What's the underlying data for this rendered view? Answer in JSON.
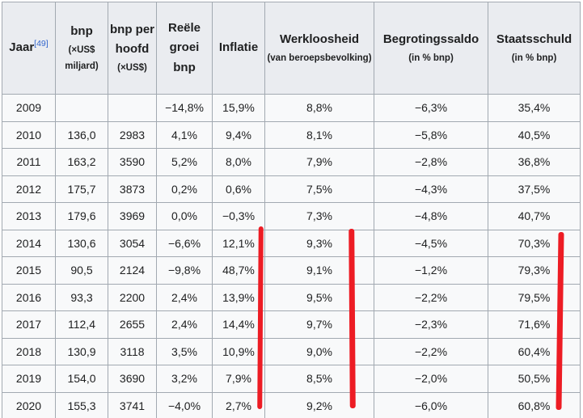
{
  "table": {
    "headers": [
      {
        "key": "jaar",
        "title": "Jaar",
        "ref": "[49]",
        "sub": ""
      },
      {
        "key": "bnp",
        "title": "bnp",
        "ref": "",
        "sub": "(×US$ miljard)"
      },
      {
        "key": "bnp-per-hoofd",
        "title": "bnp per hoofd",
        "ref": "",
        "sub": "(×US$)"
      },
      {
        "key": "reele-groei-bnp",
        "title": "Reële groei bnp",
        "ref": "",
        "sub": ""
      },
      {
        "key": "inflatie",
        "title": "Inflatie",
        "ref": "",
        "sub": ""
      },
      {
        "key": "werkloosheid",
        "title": "Werkloosheid",
        "ref": "",
        "sub": "(van beroepsbevolking)"
      },
      {
        "key": "begrotingssaldo",
        "title": "Begrotingssaldo",
        "ref": "",
        "sub": "(in % bnp)"
      },
      {
        "key": "staatsschuld",
        "title": "Staatsschuld",
        "ref": "",
        "sub": "(in % bnp)"
      }
    ],
    "rows": [
      [
        "2009",
        "",
        "",
        "−14,8%",
        "15,9%",
        "8,8%",
        "−6,3%",
        "35,4%"
      ],
      [
        "2010",
        "136,0",
        "2983",
        "4,1%",
        "9,4%",
        "8,1%",
        "−5,8%",
        "40,5%"
      ],
      [
        "2011",
        "163,2",
        "3590",
        "5,2%",
        "8,0%",
        "7,9%",
        "−2,8%",
        "36,8%"
      ],
      [
        "2012",
        "175,7",
        "3873",
        "0,2%",
        "0,6%",
        "7,5%",
        "−4,3%",
        "37,5%"
      ],
      [
        "2013",
        "179,6",
        "3969",
        "0,0%",
        "−0,3%",
        "7,3%",
        "−4,8%",
        "40,7%"
      ],
      [
        "2014",
        "130,6",
        "3054",
        "−6,6%",
        "12,1%",
        "9,3%",
        "−4,5%",
        "70,3%"
      ],
      [
        "2015",
        "90,5",
        "2124",
        "−9,8%",
        "48,7%",
        "9,1%",
        "−1,2%",
        "79,3%"
      ],
      [
        "2016",
        "93,3",
        "2200",
        "2,4%",
        "13,9%",
        "9,5%",
        "−2,2%",
        "79,5%"
      ],
      [
        "2017",
        "112,4",
        "2655",
        "2,4%",
        "14,4%",
        "9,7%",
        "−2,3%",
        "71,6%"
      ],
      [
        "2018",
        "130,9",
        "3118",
        "3,5%",
        "10,9%",
        "9,0%",
        "−2,2%",
        "60,4%"
      ],
      [
        "2019",
        "154,0",
        "3690",
        "3,2%",
        "7,9%",
        "8,5%",
        "−2,0%",
        "50,5%"
      ],
      [
        "2020",
        "155,3",
        "3741",
        "−4,0%",
        "2,7%",
        "9,2%",
        "−6,0%",
        "60,8%"
      ]
    ]
  },
  "annotations": {
    "description": "Three hand-drawn red vertical marker strokes spanning rows 2014–2020",
    "lines": [
      {
        "marks": "right edge of Inflatie column",
        "rows": "2014–2020"
      },
      {
        "marks": "right edge of Werkloosheid column",
        "rows": "2014–2020"
      },
      {
        "marks": "right edge of Staatsschuld column",
        "rows": "2014–2020"
      }
    ]
  },
  "colors": {
    "annotation_red": "#ed1c24",
    "link_blue": "#3366cc",
    "header_bg": "#eaecf0",
    "cell_bg": "#f8f9fa",
    "border": "#a2a9b1",
    "text": "#202122"
  }
}
